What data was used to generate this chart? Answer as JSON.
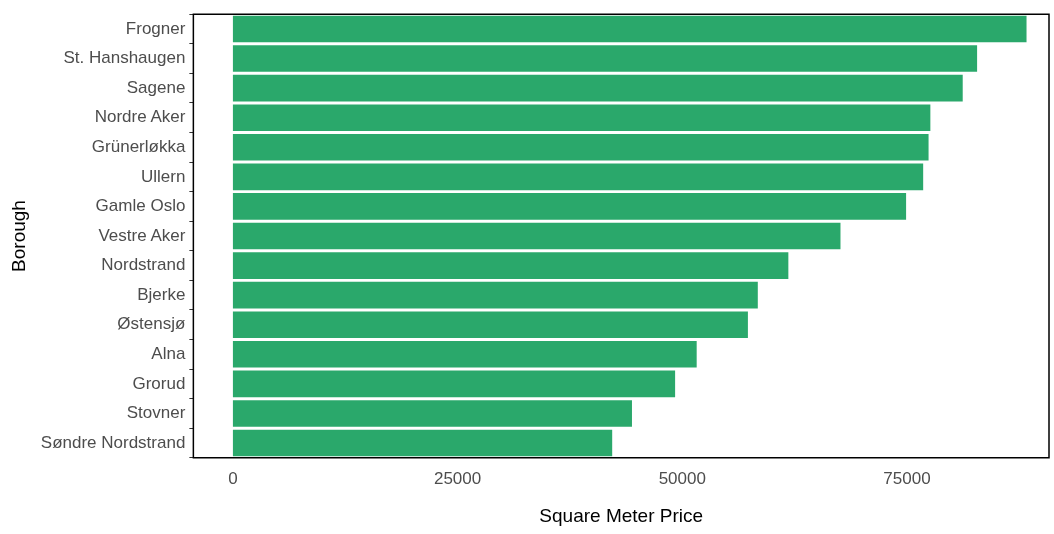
{
  "chart_data": {
    "type": "bar",
    "orientation": "horizontal",
    "xlabel": "Square Meter Price",
    "ylabel": "Borough",
    "categories": [
      "Frogner",
      "St. Hanshaugen",
      "Sagene",
      "Nordre Aker",
      "Grünerløkka",
      "Ullern",
      "Gamle Oslo",
      "Vestre Aker",
      "Nordstrand",
      "Bjerke",
      "Østensjø",
      "Alna",
      "Grorud",
      "Stovner",
      "Søndre Nordstrand"
    ],
    "values": [
      88300,
      82800,
      81200,
      77600,
      77400,
      76800,
      74900,
      67600,
      61800,
      58400,
      57300,
      51600,
      49200,
      44400,
      42200
    ],
    "color": "#2aa86b",
    "xlim": [
      -4400,
      90800
    ],
    "xticks": [
      0,
      25000,
      50000,
      75000
    ],
    "grid": false,
    "legend": false
  }
}
